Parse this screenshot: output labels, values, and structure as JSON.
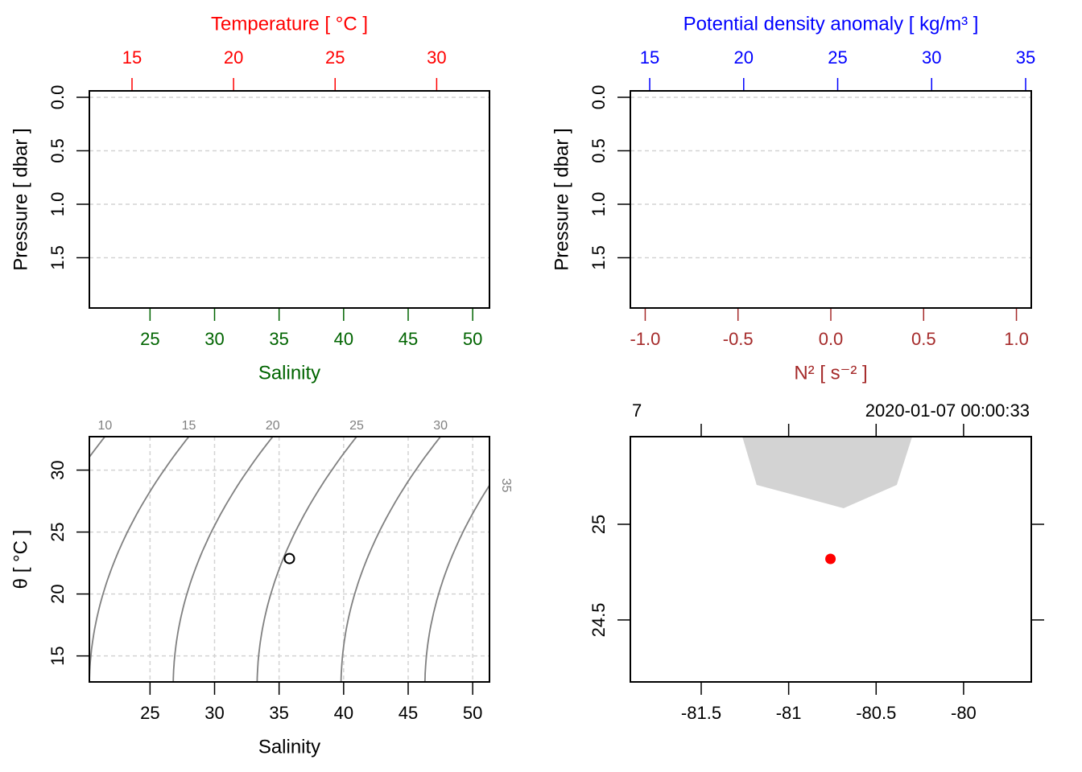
{
  "chart_data": [
    {
      "type": "profile",
      "y_label": "Pressure [ dbar ]",
      "ylim": [
        1.97,
        -0.06
      ],
      "yticks": [
        {
          "value": 0,
          "label": "0.0"
        },
        0.5,
        {
          "value": 1,
          "label": "1.0"
        },
        1.5
      ],
      "grid": true,
      "top_axis": {
        "label": "Temperature [ °C ]",
        "color": "#ff0000",
        "xlim": [
          12.9,
          32.6
        ],
        "xticks": [
          15,
          20,
          25,
          30
        ]
      },
      "bottom_axis": {
        "label": "Salinity",
        "color": "#006400",
        "xlim": [
          20.3,
          51.3
        ],
        "xticks": [
          25,
          30,
          35,
          40,
          45,
          50
        ]
      }
    },
    {
      "type": "profile",
      "y_label": "Pressure [ dbar ]",
      "ylim": [
        1.97,
        -0.06
      ],
      "yticks": [
        {
          "value": 0,
          "label": "0.0"
        },
        0.5,
        {
          "value": 1,
          "label": "1.0"
        },
        1.5
      ],
      "grid": true,
      "top_axis": {
        "label": "Potential density anomaly [ kg/m³ ]",
        "color": "#0000ff",
        "xlim": [
          13.97,
          35.3
        ],
        "xticks": [
          15,
          20,
          25,
          30,
          35
        ]
      },
      "bottom_axis": {
        "label": "N² [ s⁻² ]",
        "color": "#a52a2a",
        "xlim": [
          -1.08,
          1.08
        ],
        "xticks": [
          {
            "value": -1,
            "label": "-1.0"
          },
          -0.5,
          {
            "value": 0,
            "label": "0.0"
          },
          0.5,
          {
            "value": 1,
            "label": "1.0"
          }
        ]
      }
    },
    {
      "type": "ts",
      "x_label": "Salinity",
      "y_label": "θ [ °C ]",
      "xlim": [
        20.3,
        51.3
      ],
      "xticks": [
        25,
        30,
        35,
        40,
        45,
        50
      ],
      "ylim": [
        12.9,
        32.7
      ],
      "yticks": [
        15,
        20,
        25,
        30
      ],
      "grid": true,
      "isopycnals": [
        10,
        15,
        20,
        25,
        30,
        35
      ],
      "isopycnal_color": "#808080",
      "x": [
        35.8
      ],
      "y": [
        22.86
      ],
      "point_color": "#000000"
    },
    {
      "type": "map",
      "title_left": "7",
      "title_right": "2020-01-07 00:00:33",
      "xlim": [
        -81.905,
        -79.613
      ],
      "xticks": [
        -81.5,
        -81,
        -80.5,
        -80
      ],
      "ylim": [
        24.176,
        25.458
      ],
      "yticks": [
        24.5,
        25
      ],
      "land": {
        "color": "#d3d3d3",
        "lon": [
          -81.265,
          -81.183,
          -80.686,
          -80.382,
          -80.294
        ],
        "lat": [
          25.458,
          25.206,
          25.084,
          25.206,
          25.458
        ]
      },
      "stations": {
        "color": "#ff0000",
        "lon": [
          -80.761
        ],
        "lat": [
          24.819
        ]
      }
    }
  ]
}
